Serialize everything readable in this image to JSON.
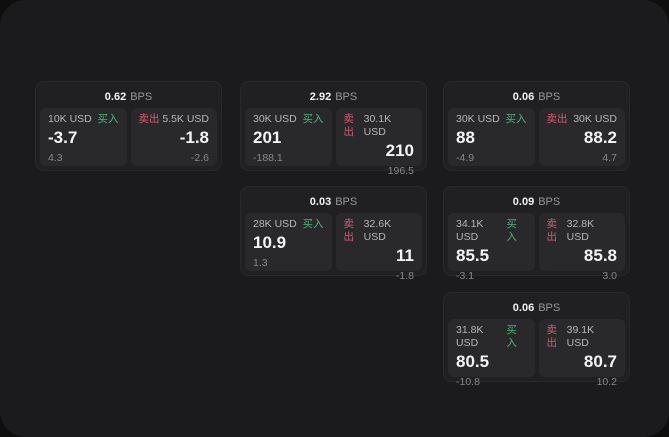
{
  "labels": {
    "bps_unit": "BPS",
    "buy": "买入",
    "sell": "卖出"
  },
  "colors": {
    "buy_green": "#4bb577",
    "sell_red": "#d25b6c",
    "panel_bg": "#1b1b1d",
    "card_bg": "#202022",
    "cell_bg": "#29292c",
    "outer_bg": "#0e0e0f"
  },
  "cards": [
    {
      "bps": "0.62",
      "buy": {
        "amount": "10K USD",
        "value": "-3.7",
        "sub": "4.3"
      },
      "sell": {
        "amount": "5.5K USD",
        "value": "-1.8",
        "sub": "-2.6"
      }
    },
    {
      "bps": "2.92",
      "buy": {
        "amount": "30K USD",
        "value": "201",
        "sub": "-188.1"
      },
      "sell": {
        "amount": "30.1K USD",
        "value": "210",
        "sub": "196.5"
      }
    },
    {
      "bps": "0.06",
      "buy": {
        "amount": "30K USD",
        "value": "88",
        "sub": "-4.9"
      },
      "sell": {
        "amount": "30K USD",
        "value": "88.2",
        "sub": "4.7"
      }
    },
    {
      "bps": "0.03",
      "buy": {
        "amount": "28K USD",
        "value": "10.9",
        "sub": "1.3"
      },
      "sell": {
        "amount": "32.6K USD",
        "value": "11",
        "sub": "-1.8"
      }
    },
    {
      "bps": "0.09",
      "buy": {
        "amount": "34.1K USD",
        "value": "85.5",
        "sub": "-3.1"
      },
      "sell": {
        "amount": "32.8K USD",
        "value": "85.8",
        "sub": "3.0"
      }
    },
    {
      "bps": "0.06",
      "buy": {
        "amount": "31.8K USD",
        "value": "80.5",
        "sub": "-10.8"
      },
      "sell": {
        "amount": "39.1K USD",
        "value": "80.7",
        "sub": "10.2"
      }
    }
  ]
}
